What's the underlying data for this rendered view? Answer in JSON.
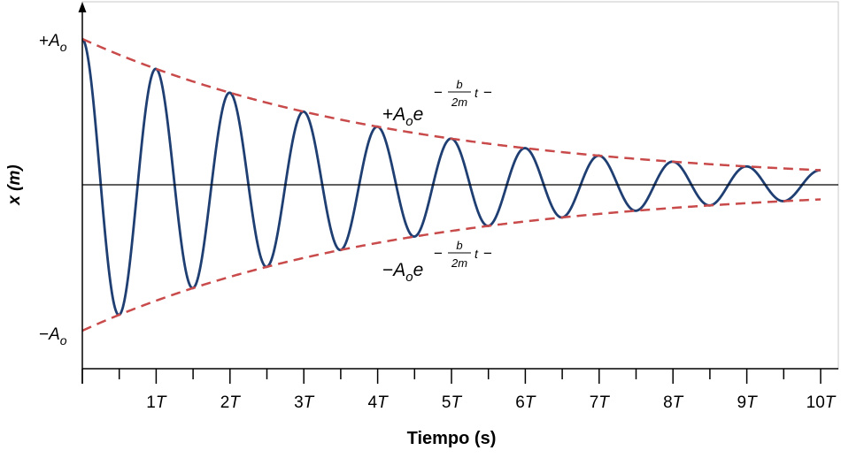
{
  "chart_data": {
    "type": "line",
    "xlabel": "Tiempo (s)",
    "ylabel": "x (m)",
    "xlim": [
      0,
      10
    ],
    "ylim": [
      -1.25,
      1.0
    ],
    "x_unit_symbol": "T",
    "x_ticks": [
      "1",
      "2",
      "3",
      "4",
      "5",
      "6",
      "7",
      "8",
      "9",
      "10"
    ],
    "y_ticks": [
      {
        "sign": "+",
        "symbol": "A",
        "subscript": "o",
        "value": 1
      },
      {
        "sign": "−",
        "symbol": "A",
        "subscript": "o",
        "value": -1
      }
    ],
    "series": [
      {
        "kind": "damped-cosine",
        "initial_amplitude": 1,
        "amplitude_at_10T": 0.1,
        "periods": 10,
        "color": "#1f3f73"
      },
      {
        "kind": "upper-envelope",
        "initial_amplitude": 1,
        "amplitude_at_10T": 0.1,
        "color": "#c94a4a",
        "dashed": true
      },
      {
        "kind": "lower-envelope",
        "initial_amplitude": -1,
        "amplitude_at_10T": -0.1,
        "color": "#c94a4a",
        "dashed": true
      }
    ],
    "annotations": {
      "upper": {
        "sign": "+",
        "base": "A",
        "sub": "o",
        "e": "e",
        "lparen": "−",
        "num": "b",
        "den": "2m",
        "t": "t",
        "rparen": "−"
      },
      "lower": {
        "sign": "−",
        "base": "A",
        "sub": "o",
        "e": "e",
        "lparen": "−",
        "num": "b",
        "den": "2m",
        "t": "t",
        "rparen": "−"
      }
    },
    "grid": false
  }
}
